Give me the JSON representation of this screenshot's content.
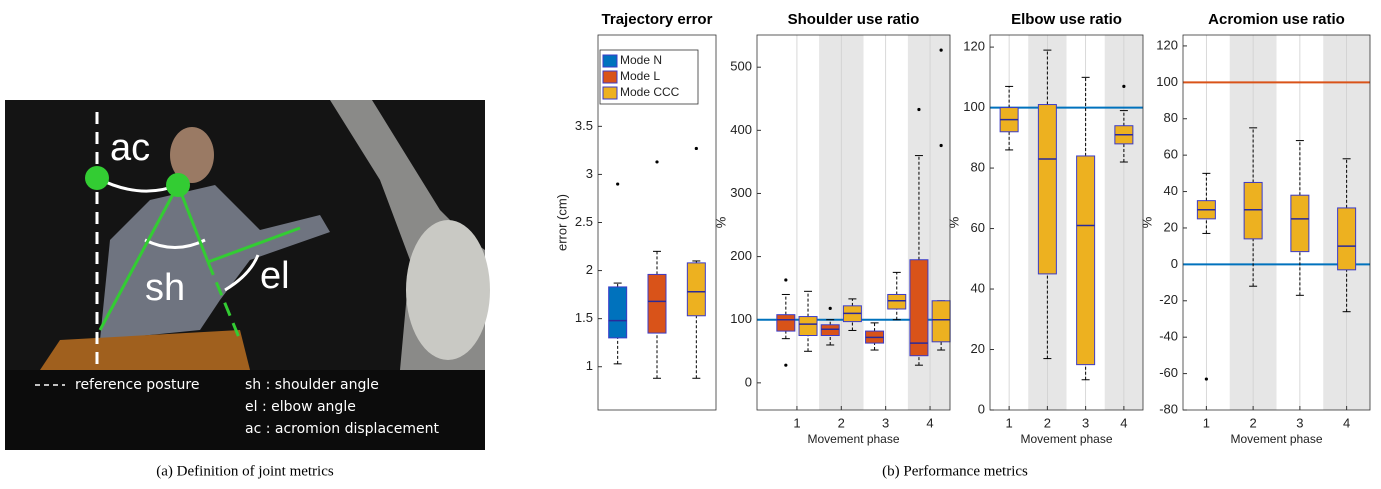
{
  "photo": {
    "labels": [
      "ac",
      "sh",
      "el"
    ],
    "legend": [
      "reference posture",
      "sh : shoulder angle",
      "el : elbow angle",
      "ac : acromion displacement"
    ]
  },
  "captions": [
    "(a) Definition of joint metrics",
    "(b) Performance metrics"
  ],
  "chart_data": [
    {
      "type": "box",
      "title": "Trajectory error",
      "y_label": "error (cm)",
      "xlim": [
        0.5,
        3.5
      ],
      "ylim": [
        0.55,
        4.45
      ],
      "yticks": [
        1,
        1.5,
        2,
        2.5,
        3,
        3.5
      ],
      "legend": "upper left",
      "series": [
        {
          "name": "Mode N",
          "color": "#0072BD",
          "values": [
            {
              "min": 1.03,
              "q1": 1.3,
              "median": 1.48,
              "q3": 1.83,
              "max": 1.87,
              "outliers": [
                2.9
              ]
            }
          ]
        },
        {
          "name": "Mode L",
          "color": "#D95319",
          "values": [
            {
              "min": 0.88,
              "q1": 1.35,
              "median": 1.68,
              "q3": 1.96,
              "max": 2.2,
              "outliers": [
                3.13
              ]
            }
          ]
        },
        {
          "name": "Mode CCC",
          "color": "#EDB120",
          "values": [
            {
              "min": 0.88,
              "q1": 1.53,
              "median": 1.78,
              "q3": 2.08,
              "max": 2.1,
              "outliers": [
                3.27
              ]
            }
          ]
        }
      ]
    },
    {
      "type": "box",
      "title": "Shoulder use ratio",
      "y_label": "%",
      "x_label": "Movement phase",
      "xlim": [
        0.1,
        4.45
      ],
      "ylim": [
        -43,
        551
      ],
      "xticks": [
        1,
        2,
        3,
        4
      ],
      "yticks": [
        0,
        100,
        200,
        300,
        400,
        500
      ],
      "grid": true,
      "shaded": [
        2,
        4
      ],
      "hlines": [
        {
          "value": 100,
          "color": "#0072BD"
        }
      ],
      "series": [
        {
          "color": "#D95319",
          "values": [
            {
              "min": 70,
              "q1": 82,
              "median": 100,
              "q3": 108,
              "max": 140,
              "outliers": [
                163,
                28
              ]
            },
            {
              "min": 60,
              "q1": 75,
              "median": 85,
              "q3": 92,
              "max": 100,
              "outliers": [
                118
              ]
            },
            {
              "min": 52,
              "q1": 63,
              "median": 72,
              "q3": 82,
              "max": 95
            },
            {
              "min": 28,
              "q1": 43,
              "median": 63,
              "q3": 195,
              "max": 360,
              "outliers": [
                433
              ]
            }
          ]
        },
        {
          "color": "#EDB120",
          "values": [
            {
              "min": 50,
              "q1": 75,
              "median": 93,
              "q3": 105,
              "max": 145
            },
            {
              "min": 83,
              "q1": 97,
              "median": 110,
              "q3": 122,
              "max": 133
            },
            {
              "min": 100,
              "q1": 117,
              "median": 130,
              "q3": 140,
              "max": 175
            },
            {
              "min": 52,
              "q1": 65,
              "median": 100,
              "q3": 130,
              "max": 130,
              "outliers": [
                527,
                376
              ]
            }
          ]
        }
      ]
    },
    {
      "type": "box",
      "title": "Elbow use ratio",
      "y_label": "%",
      "x_label": "Movement phase",
      "xlim": [
        0.5,
        4.5
      ],
      "ylim": [
        0,
        124
      ],
      "xticks": [
        1,
        2,
        3,
        4
      ],
      "yticks": [
        0,
        20,
        40,
        60,
        80,
        100,
        120
      ],
      "grid": true,
      "shaded": [
        2,
        4
      ],
      "hlines": [
        {
          "value": 100,
          "color": "#0072BD"
        }
      ],
      "series": [
        {
          "color": "#EDB120",
          "values": [
            {
              "min": 86,
              "q1": 92,
              "median": 96,
              "q3": 100,
              "max": 107
            },
            {
              "min": 17,
              "q1": 45,
              "median": 83,
              "q3": 101,
              "max": 119
            },
            {
              "min": 10,
              "q1": 15,
              "median": 61,
              "q3": 84,
              "max": 110
            },
            {
              "min": 82,
              "q1": 88,
              "median": 91,
              "q3": 94,
              "max": 99,
              "outliers": [
                107
              ]
            }
          ]
        }
      ]
    },
    {
      "type": "box",
      "title": "Acromion use ratio",
      "y_label": "%",
      "x_label": "Movement phase",
      "xlim": [
        0.5,
        4.5
      ],
      "ylim": [
        -80,
        126
      ],
      "xticks": [
        1,
        2,
        3,
        4
      ],
      "yticks": [
        -80,
        -60,
        -40,
        -20,
        0,
        20,
        40,
        60,
        80,
        100,
        120
      ],
      "grid": true,
      "shaded": [
        2,
        4
      ],
      "hlines": [
        {
          "value": 100,
          "color": "#D95319"
        },
        {
          "value": 0,
          "color": "#0072BD"
        }
      ],
      "series": [
        {
          "color": "#EDB120",
          "values": [
            {
              "min": 17,
              "q1": 25,
              "median": 30,
              "q3": 35,
              "max": 50,
              "outliers": [
                -63
              ]
            },
            {
              "min": -12,
              "q1": 14,
              "median": 30,
              "q3": 45,
              "max": 75
            },
            {
              "min": -17,
              "q1": 7,
              "median": 25,
              "q3": 38,
              "max": 68
            },
            {
              "min": -26,
              "q1": -3,
              "median": 10,
              "q3": 31,
              "max": 58
            }
          ]
        }
      ]
    }
  ]
}
